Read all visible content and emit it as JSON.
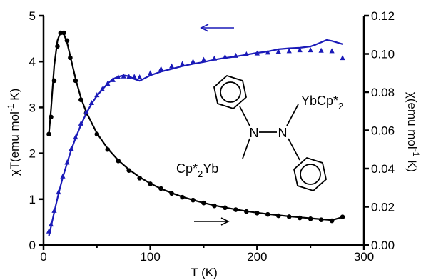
{
  "chart_data": {
    "type": "scatter",
    "title": "",
    "xlabel": "T (K)",
    "xlim": [
      0,
      300
    ],
    "x_ticks": [
      "0",
      "100",
      "200",
      "300"
    ],
    "ylabel_left": "χT(emu mol-1 K)",
    "ylabel_left_parts": [
      "χT(emu mol",
      "-1",
      " K)"
    ],
    "ylim_left": [
      0,
      5
    ],
    "y_ticks_left": [
      "0",
      "1",
      "2",
      "3",
      "4",
      "5"
    ],
    "ylabel_right": "χ(emu mol-1 K)",
    "ylabel_right_parts": [
      "χ(emu mol",
      "-1",
      " K)"
    ],
    "ylim_right": [
      0,
      0.12
    ],
    "y_ticks_right": [
      "0.00",
      "0.02",
      "0.04",
      "0.06",
      "0.08",
      "0.10",
      "0.12"
    ],
    "grid": false,
    "legend": "none",
    "series": [
      {
        "axis": "right",
        "color": "#000000",
        "marker": "circle",
        "x": [
          5,
          7,
          10,
          13,
          16,
          19,
          22,
          25,
          30,
          35,
          40,
          50,
          60,
          70,
          80,
          90,
          100,
          110,
          120,
          130,
          140,
          150,
          160,
          170,
          180,
          190,
          200,
          210,
          220,
          230,
          240,
          250,
          260,
          270,
          280
        ],
        "y": [
          0.058,
          0.067,
          0.086,
          0.104,
          0.111,
          0.111,
          0.107,
          0.098,
          0.086,
          0.076,
          0.069,
          0.058,
          0.05,
          0.044,
          0.039,
          0.035,
          0.032,
          0.0295,
          0.027,
          0.025,
          0.0235,
          0.022,
          0.0205,
          0.0195,
          0.0185,
          0.0175,
          0.0167,
          0.016,
          0.0153,
          0.0148,
          0.0142,
          0.0137,
          0.0132,
          0.0127,
          0.0147
        ]
      },
      {
        "axis": "right",
        "color": "#000000",
        "marker": "line",
        "x": [
          5,
          7,
          10,
          13,
          16,
          19,
          22,
          25,
          30,
          35,
          40,
          50,
          60,
          70,
          80,
          90,
          100,
          110,
          120,
          130,
          140,
          150,
          160,
          170,
          180,
          190,
          200,
          210,
          220,
          230,
          240,
          250,
          260,
          270,
          280
        ],
        "y": [
          0.058,
          0.071,
          0.094,
          0.107,
          0.1115,
          0.1105,
          0.106,
          0.099,
          0.087,
          0.077,
          0.0695,
          0.0585,
          0.0505,
          0.0443,
          0.0395,
          0.0355,
          0.0322,
          0.0295,
          0.0272,
          0.0252,
          0.0235,
          0.022,
          0.0207,
          0.0196,
          0.0186,
          0.0177,
          0.0169,
          0.0162,
          0.0156,
          0.015,
          0.0145,
          0.014,
          0.0135,
          0.013,
          0.0146
        ]
      },
      {
        "axis": "left",
        "color": "#1a1ab8",
        "marker": "triangle",
        "x": [
          5,
          7,
          10,
          14,
          18,
          22,
          26,
          30,
          35,
          40,
          45,
          50,
          55,
          60,
          65,
          70,
          75,
          80,
          85,
          90,
          100,
          110,
          120,
          130,
          140,
          150,
          160,
          170,
          180,
          190,
          200,
          210,
          220,
          230,
          240,
          250,
          260,
          270,
          280
        ],
        "y": [
          0.3,
          0.45,
          0.75,
          1.15,
          1.5,
          1.8,
          2.1,
          2.35,
          2.65,
          2.9,
          3.1,
          3.27,
          3.4,
          3.52,
          3.6,
          3.66,
          3.68,
          3.67,
          3.67,
          3.66,
          3.75,
          3.84,
          3.9,
          3.95,
          4.0,
          4.04,
          4.07,
          4.1,
          4.13,
          4.16,
          4.18,
          4.2,
          4.22,
          4.23,
          4.25,
          4.25,
          4.24,
          4.23,
          4.08
        ]
      },
      {
        "axis": "left",
        "color": "#1a1ab8",
        "marker": "line",
        "x": [
          5,
          7,
          10,
          14,
          18,
          22,
          26,
          30,
          35,
          40,
          45,
          50,
          55,
          60,
          65,
          70,
          75,
          80,
          85,
          90,
          100,
          110,
          120,
          130,
          140,
          150,
          160,
          170,
          180,
          190,
          200,
          210,
          220,
          230,
          240,
          250,
          255,
          260,
          265,
          270,
          280
        ],
        "y": [
          0.2,
          0.4,
          0.72,
          1.12,
          1.47,
          1.78,
          2.08,
          2.33,
          2.62,
          2.87,
          3.08,
          3.25,
          3.39,
          3.52,
          3.62,
          3.67,
          3.7,
          3.68,
          3.62,
          3.58,
          3.7,
          3.78,
          3.84,
          3.9,
          3.95,
          3.99,
          4.04,
          4.08,
          4.11,
          4.15,
          4.19,
          4.22,
          4.27,
          4.29,
          4.3,
          4.33,
          4.37,
          4.42,
          4.47,
          4.45,
          4.38
        ]
      }
    ],
    "annotations": {
      "left_arrow_color": "#1a1ab8",
      "right_arrow_color": "#000000"
    },
    "molecule_labels": {
      "top_right": "YbCp*2",
      "top_right_parts": [
        "YbCp*",
        "2"
      ],
      "bottom_left": "Cp*2Yb",
      "bottom_left_parts": [
        "Cp*",
        "2",
        "Yb"
      ],
      "n_left": "N",
      "n_right": "N"
    }
  }
}
